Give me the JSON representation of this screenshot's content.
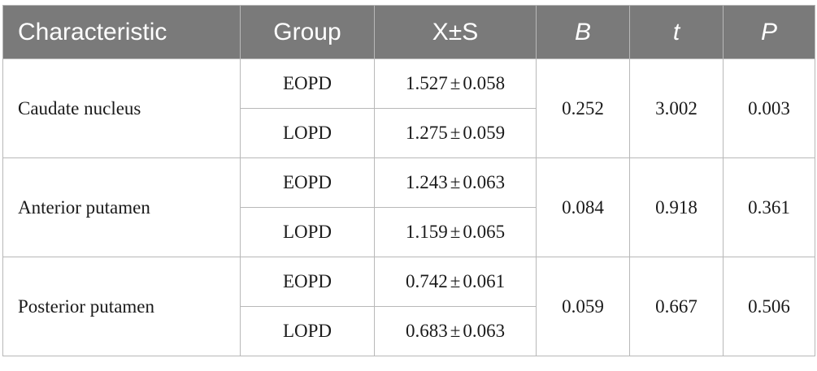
{
  "header": {
    "characteristic": "Characteristic",
    "group": "Group",
    "mean_sd": "X±S",
    "b": "B",
    "t": "t",
    "p": "P"
  },
  "rows": [
    {
      "characteristic": "Caudate nucleus",
      "b": "0.252",
      "t": "3.002",
      "p": "0.003",
      "groups": [
        {
          "group": "EOPD",
          "mean": "1.527",
          "sd": "0.058"
        },
        {
          "group": "LOPD",
          "mean": "1.275",
          "sd": "0.059"
        }
      ]
    },
    {
      "characteristic": "Anterior putamen",
      "b": "0.084",
      "t": "0.918",
      "p": "0.361",
      "groups": [
        {
          "group": "EOPD",
          "mean": "1.243",
          "sd": "0.063"
        },
        {
          "group": "LOPD",
          "mean": "1.159",
          "sd": "0.065"
        }
      ]
    },
    {
      "characteristic": "Posterior putamen",
      "b": "0.059",
      "t": "0.667",
      "p": "0.506",
      "groups": [
        {
          "group": "EOPD",
          "mean": "0.742",
          "sd": "0.061"
        },
        {
          "group": "LOPD",
          "mean": "0.683",
          "sd": "0.063"
        }
      ]
    }
  ]
}
